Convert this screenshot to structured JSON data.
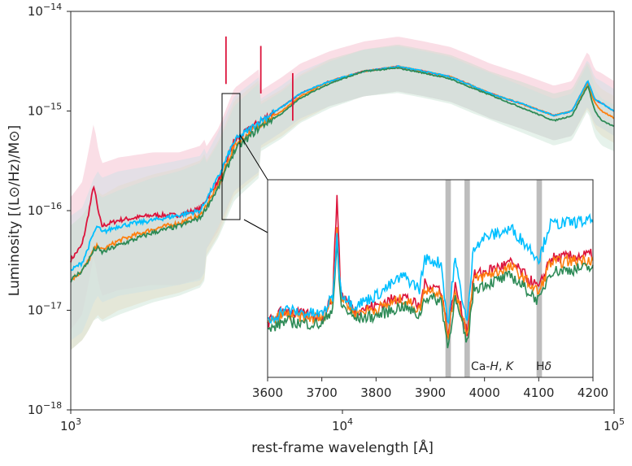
{
  "chart_data": [
    {
      "type": "line",
      "xlabel": "rest-frame wavelength [Å]",
      "ylabel": "Luminosity [(L⊙/Hz)/M⊙]",
      "xscale": "log",
      "yscale": "log",
      "xlim": [
        1000,
        100000
      ],
      "ylim": [
        1e-18,
        1e-14
      ],
      "x_ticks": [
        {
          "value": 1000,
          "base": "10",
          "exp": "3"
        },
        {
          "value": 10000,
          "base": "10",
          "exp": "4"
        },
        {
          "value": 100000,
          "base": "10",
          "exp": "5"
        }
      ],
      "y_ticks": [
        {
          "value": 1e-14,
          "base": "10",
          "exp": "−14"
        },
        {
          "value": 1e-15,
          "base": "10",
          "exp": "−15"
        },
        {
          "value": 1e-16,
          "base": "10",
          "exp": "−16"
        },
        {
          "value": 1e-17,
          "base": "10",
          "exp": "−17"
        },
        {
          "value": 1e-18,
          "base": "10",
          "exp": "−18"
        }
      ],
      "grid": false,
      "legend": "none",
      "series": [
        {
          "color": "#dc143c",
          "band_color": "#f4b6c8",
          "points": [
            [
              1000,
              3.2e-17
            ],
            [
              1100,
              4.5e-17
            ],
            [
              1150,
              8e-17
            ],
            [
              1216,
              1.8e-16
            ],
            [
              1260,
              1e-16
            ],
            [
              1300,
              7e-17
            ],
            [
              1500,
              8e-17
            ],
            [
              2000,
              9e-17
            ],
            [
              2500,
              9e-17
            ],
            [
              3000,
              1.05e-16
            ],
            [
              3500,
              2e-16
            ],
            [
              4000,
              5e-16
            ],
            [
              5000,
              8e-16
            ],
            [
              6000,
              1.1e-15
            ],
            [
              7000,
              1.5e-15
            ],
            [
              9000,
              2e-15
            ],
            [
              12000,
              2.5e-15
            ],
            [
              16000,
              2.8e-15
            ],
            [
              20000,
              2.5e-15
            ],
            [
              25000,
              2.2e-15
            ],
            [
              30000,
              1.8e-15
            ],
            [
              35000,
              1.5e-15
            ],
            [
              45000,
              1.2e-15
            ],
            [
              60000,
              9e-16
            ],
            [
              70000,
              1e-15
            ],
            [
              80000,
              2e-15
            ],
            [
              85000,
              1.3e-15
            ],
            [
              90000,
              1.2e-15
            ],
            [
              100000,
              1e-15
            ]
          ]
        },
        {
          "color": "#ff7f0e",
          "band_color": "#f7d4b4",
          "points": [
            [
              1000,
              2e-17
            ],
            [
              1100,
              2.5e-17
            ],
            [
              1150,
              3e-17
            ],
            [
              1216,
              4e-17
            ],
            [
              1260,
              4.5e-17
            ],
            [
              1300,
              4e-17
            ],
            [
              1500,
              5e-17
            ],
            [
              2000,
              6.5e-17
            ],
            [
              2500,
              7.5e-17
            ],
            [
              3000,
              9e-17
            ],
            [
              3500,
              1.8e-16
            ],
            [
              4000,
              4.5e-16
            ],
            [
              5000,
              7.5e-16
            ],
            [
              6000,
              1e-15
            ],
            [
              7000,
              1.4e-15
            ],
            [
              9000,
              2e-15
            ],
            [
              12000,
              2.5e-15
            ],
            [
              16000,
              2.8e-15
            ],
            [
              20000,
              2.5e-15
            ],
            [
              25000,
              2.2e-15
            ],
            [
              30000,
              1.8e-15
            ],
            [
              35000,
              1.5e-15
            ],
            [
              45000,
              1.2e-15
            ],
            [
              60000,
              9e-16
            ],
            [
              70000,
              1e-15
            ],
            [
              80000,
              1.9e-15
            ],
            [
              85000,
              1.2e-15
            ],
            [
              90000,
              1e-15
            ],
            [
              100000,
              8.5e-16
            ]
          ]
        },
        {
          "color": "#2e8b57",
          "band_color": "#c8e2d2",
          "points": [
            [
              1000,
              2e-17
            ],
            [
              1100,
              2.5e-17
            ],
            [
              1150,
              3e-17
            ],
            [
              1216,
              4e-17
            ],
            [
              1260,
              4.2e-17
            ],
            [
              1300,
              3.8e-17
            ],
            [
              1500,
              4.5e-17
            ],
            [
              2000,
              6e-17
            ],
            [
              2500,
              7e-17
            ],
            [
              3000,
              8.5e-17
            ],
            [
              3500,
              1.7e-16
            ],
            [
              4000,
              4e-16
            ],
            [
              5000,
              7e-16
            ],
            [
              6000,
              9.5e-16
            ],
            [
              7000,
              1.35e-15
            ],
            [
              9000,
              1.9e-15
            ],
            [
              12000,
              2.5e-15
            ],
            [
              16000,
              2.7e-15
            ],
            [
              20000,
              2.4e-15
            ],
            [
              25000,
              2.1e-15
            ],
            [
              30000,
              1.7e-15
            ],
            [
              35000,
              1.45e-15
            ],
            [
              45000,
              1.1e-15
            ],
            [
              60000,
              8e-16
            ],
            [
              70000,
              9e-16
            ],
            [
              80000,
              1.8e-15
            ],
            [
              85000,
              1e-15
            ],
            [
              90000,
              8e-16
            ],
            [
              100000,
              7e-16
            ]
          ]
        },
        {
          "color": "#00bfff",
          "band_color": "#c9dfe6",
          "points": [
            [
              1000,
              2.5e-17
            ],
            [
              1100,
              3e-17
            ],
            [
              1150,
              4e-17
            ],
            [
              1216,
              6e-17
            ],
            [
              1260,
              7e-17
            ],
            [
              1300,
              6e-17
            ],
            [
              1500,
              7e-17
            ],
            [
              2000,
              8e-17
            ],
            [
              2500,
              9e-17
            ],
            [
              3000,
              1e-16
            ],
            [
              3500,
              2.2e-16
            ],
            [
              4000,
              5e-16
            ],
            [
              5000,
              8e-16
            ],
            [
              6000,
              1.1e-15
            ],
            [
              7000,
              1.5e-15
            ],
            [
              9000,
              2e-15
            ],
            [
              12000,
              2.5e-15
            ],
            [
              16000,
              2.8e-15
            ],
            [
              20000,
              2.5e-15
            ],
            [
              25000,
              2.2e-15
            ],
            [
              30000,
              1.8e-15
            ],
            [
              35000,
              1.5e-15
            ],
            [
              45000,
              1.2e-15
            ],
            [
              60000,
              9e-16
            ],
            [
              70000,
              1e-15
            ],
            [
              80000,
              2e-15
            ],
            [
              85000,
              1.3e-15
            ],
            [
              90000,
              1.2e-15
            ],
            [
              100000,
              1e-15
            ]
          ]
        }
      ]
    },
    {
      "type": "line",
      "inset": true,
      "xlim": [
        3600,
        4200
      ],
      "x_ticks": [
        3600,
        3700,
        3800,
        3900,
        4000,
        4100,
        4200
      ],
      "zoom_region": {
        "x": [
          3600,
          4200
        ],
        "y": [
          8e-17,
          1.5e-15
        ]
      },
      "bands": [
        {
          "x": [
            3928,
            3938
          ]
        },
        {
          "x": [
            3963,
            3973
          ]
        },
        {
          "x": [
            4096,
            4106
          ]
        }
      ],
      "annotations": [
        {
          "x": 3990,
          "text_parts": [
            "Ca-",
            "H",
            ", ",
            "K"
          ]
        },
        {
          "x": 4110,
          "text_parts": [
            "H",
            "δ"
          ]
        }
      ],
      "series": [
        {
          "color": "#dc143c",
          "points": [
            [
              3600,
              40
            ],
            [
              3630,
              55
            ],
            [
              3660,
              50
            ],
            [
              3700,
              48
            ],
            [
              3720,
              70
            ],
            [
              3728,
              190
            ],
            [
              3735,
              75
            ],
            [
              3760,
              55
            ],
            [
              3800,
              60
            ],
            [
              3850,
              72
            ],
            [
              3880,
              58
            ],
            [
              3890,
              85
            ],
            [
              3920,
              80
            ],
            [
              3933,
              25
            ],
            [
              3945,
              85
            ],
            [
              3968,
              30
            ],
            [
              3980,
              95
            ],
            [
              4000,
              100
            ],
            [
              4050,
              110
            ],
            [
              4101,
              80
            ],
            [
              4120,
              115
            ],
            [
              4200,
              120
            ]
          ]
        },
        {
          "color": "#ff7f0e",
          "points": [
            [
              3600,
              38
            ],
            [
              3630,
              50
            ],
            [
              3660,
              47
            ],
            [
              3700,
              45
            ],
            [
              3720,
              68
            ],
            [
              3728,
              150
            ],
            [
              3735,
              70
            ],
            [
              3760,
              52
            ],
            [
              3800,
              56
            ],
            [
              3850,
              68
            ],
            [
              3880,
              55
            ],
            [
              3890,
              80
            ],
            [
              3920,
              76
            ],
            [
              3933,
              22
            ],
            [
              3945,
              80
            ],
            [
              3968,
              27
            ],
            [
              3980,
              90
            ],
            [
              4000,
              95
            ],
            [
              4050,
              105
            ],
            [
              4101,
              75
            ],
            [
              4120,
              110
            ],
            [
              4200,
              115
            ]
          ]
        },
        {
          "color": "#2e8b57",
          "points": [
            [
              3600,
              30
            ],
            [
              3630,
              42
            ],
            [
              3660,
              40
            ],
            [
              3700,
              38
            ],
            [
              3720,
              58
            ],
            [
              3728,
              130
            ],
            [
              3735,
              62
            ],
            [
              3760,
              45
            ],
            [
              3800,
              48
            ],
            [
              3850,
              60
            ],
            [
              3880,
              48
            ],
            [
              3890,
              70
            ],
            [
              3920,
              66
            ],
            [
              3933,
              10
            ],
            [
              3945,
              70
            ],
            [
              3968,
              15
            ],
            [
              3980,
              80
            ],
            [
              4000,
              85
            ],
            [
              4050,
              95
            ],
            [
              4101,
              65
            ],
            [
              4120,
              100
            ],
            [
              4200,
              105
            ]
          ]
        },
        {
          "color": "#00bfff",
          "points": [
            [
              3600,
              40
            ],
            [
              3630,
              56
            ],
            [
              3660,
              52
            ],
            [
              3700,
              50
            ],
            [
              3720,
              70
            ],
            [
              3728,
              140
            ],
            [
              3735,
              76
            ],
            [
              3760,
              60
            ],
            [
              3800,
              72
            ],
            [
              3850,
              95
            ],
            [
              3880,
              80
            ],
            [
              3890,
              115
            ],
            [
              3920,
              110
            ],
            [
              3933,
              35
            ],
            [
              3945,
              115
            ],
            [
              3968,
              40
            ],
            [
              3980,
              130
            ],
            [
              4000,
              140
            ],
            [
              4050,
              150
            ],
            [
              4101,
              115
            ],
            [
              4120,
              155
            ],
            [
              4200,
              160
            ]
          ]
        }
      ]
    }
  ]
}
